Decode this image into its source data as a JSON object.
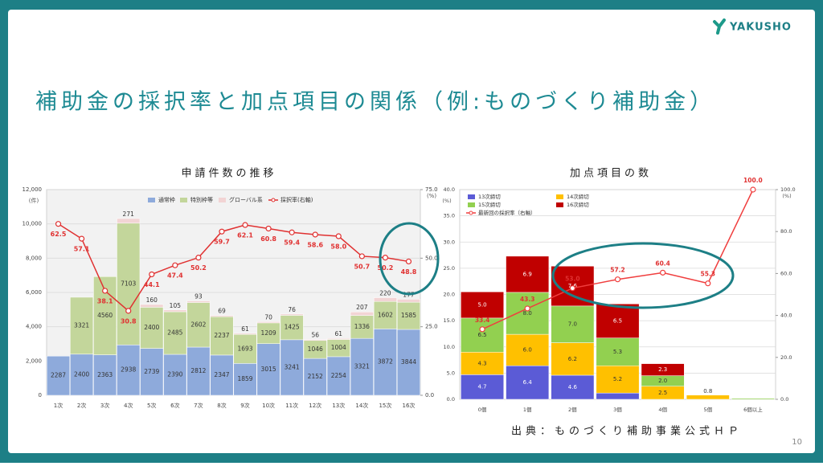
{
  "header": {
    "logo": "YAKUSHO",
    "title": "補助金の採択率と加点項目の関係（例:ものづくり補助金）"
  },
  "source": "出典：ものづくり補助事業公式ＨＰ",
  "page_number": "10",
  "chart_data": [
    {
      "type": "bar",
      "title": "申請件数の推移",
      "y_label": "(件)",
      "y2_label": "(%)",
      "categories": [
        "1次",
        "2次",
        "3次",
        "4次",
        "5次",
        "6次",
        "7次",
        "8次",
        "9次",
        "10次",
        "11次",
        "12次",
        "13次",
        "14次",
        "15次",
        "16次"
      ],
      "series": [
        {
          "name": "通常枠",
          "color": "#8eaadb",
          "values": [
            2287,
            2400,
            2363,
            2938,
            2739,
            2390,
            2812,
            2347,
            1859,
            3015,
            3241,
            2152,
            2254,
            3321,
            3872,
            3844
          ]
        },
        {
          "name": "特別枠等",
          "color": "#c3d69b",
          "values": [
            null,
            3321,
            4560,
            7103,
            2400,
            2485,
            2602,
            2237,
            1693,
            1209,
            1425,
            1046,
            1004,
            1336,
            1602,
            1585
          ]
        },
        {
          "name": "グローバル系",
          "color": "#f2d4d4",
          "values": [
            null,
            null,
            null,
            271,
            160,
            105,
            93,
            69,
            61,
            70,
            76,
            56,
            61,
            207,
            220,
            177
          ]
        },
        {
          "name": "採択率(右軸)",
          "color": "#e03131",
          "axis": "y2",
          "values": [
            62.5,
            57.1,
            38.1,
            30.8,
            44.1,
            47.4,
            50.2,
            59.7,
            62.1,
            60.8,
            59.4,
            58.6,
            58.0,
            50.7,
            50.2,
            48.8
          ],
          "value_labels": [
            "62.5",
            "57.1",
            "38.1",
            "30.8",
            "44.1",
            "47.4",
            "50.2",
            "59.7",
            "62.1",
            "60.8",
            "59.4",
            "58.6",
            "58.0",
            "50.7",
            "50.2",
            "48.8"
          ]
        }
      ],
      "ylim": [
        0,
        12000
      ],
      "yticks": [
        0,
        {
          "value": 2000,
          "label": "2,000"
        },
        {
          "value": 4000,
          "label": "4,000"
        },
        {
          "value": 6000,
          "label": "6,000"
        },
        {
          "value": 8000,
          "label": "8,000"
        },
        {
          "value": 10000,
          "label": "10,000"
        },
        {
          "value": 12000,
          "label": "12,000"
        }
      ],
      "y2lim": [
        0,
        75
      ],
      "y2ticks": [
        {
          "value": 0,
          "label": "0.0"
        },
        {
          "value": 25,
          "label": "25.0"
        },
        {
          "value": 50,
          "label": "50.0"
        },
        {
          "value": 75,
          "label": "75.0"
        }
      ],
      "grid": true
    },
    {
      "type": "bar",
      "title": "加点項目の数",
      "y_label": "(%)",
      "y2_label": "(%)",
      "categories": [
        "0個",
        "1個",
        "2個",
        "3個",
        "4個",
        "5個",
        "6個以上"
      ],
      "series": [
        {
          "name": "13次締切",
          "color": "#5b5bd6",
          "values": [
            4.7,
            6.4,
            4.6,
            1.2,
            null,
            null,
            null
          ]
        },
        {
          "name": "14次締切",
          "color": "#ffc000",
          "values": [
            4.3,
            6.0,
            6.2,
            5.2,
            2.5,
            0.8,
            null
          ],
          "value_labels": [
            "4.3",
            "6.0",
            "6.2",
            "5.2",
            "2.5",
            "0.8",
            null
          ]
        },
        {
          "name": "15次締切",
          "color": "#92d050",
          "values": [
            6.5,
            8.0,
            7.0,
            5.3,
            2.0,
            null,
            0.2
          ],
          "value_labels": [
            "6.5",
            "8.0",
            "7.0",
            "5.3",
            "2.0",
            null,
            null
          ]
        },
        {
          "name": "16次締切",
          "color": "#c00000",
          "values": [
            5.0,
            6.9,
            7.6,
            6.5,
            2.3,
            null,
            null
          ],
          "value_labels": [
            "5.0",
            "6.9",
            "7.6",
            "6.5",
            "2.3",
            null,
            null
          ]
        },
        {
          "name": "最新回の採択率（右軸）",
          "color": "#f03e3e",
          "axis": "y2",
          "values": [
            33.4,
            43.3,
            53.0,
            57.2,
            60.4,
            55.3,
            100.0
          ],
          "value_labels": [
            "33.4",
            "43.3",
            "53.0",
            "57.2",
            "60.4",
            "55.3",
            "100.0"
          ]
        }
      ],
      "ylim": [
        0,
        40
      ],
      "yticks": [
        {
          "value": 0,
          "label": "0.0"
        },
        {
          "value": 5,
          "label": "5.0"
        },
        {
          "value": 10,
          "label": "10.0"
        },
        {
          "value": 15,
          "label": "15.0"
        },
        {
          "value": 20,
          "label": "20.0"
        },
        {
          "value": 25,
          "label": "25.0"
        },
        {
          "value": 30,
          "label": "30.0"
        },
        {
          "value": 35,
          "label": "35.0"
        },
        {
          "value": 40,
          "label": "40.0"
        }
      ],
      "y2lim": [
        0,
        100
      ],
      "y2ticks": [
        {
          "value": 0,
          "label": "0.0"
        },
        {
          "value": 20,
          "label": "20.0"
        },
        {
          "value": 40,
          "label": "40.0"
        },
        {
          "value": 60,
          "label": "60.0"
        },
        {
          "value": 80,
          "label": "80.0"
        },
        {
          "value": 100,
          "label": "100.0"
        }
      ],
      "grid": true
    }
  ]
}
